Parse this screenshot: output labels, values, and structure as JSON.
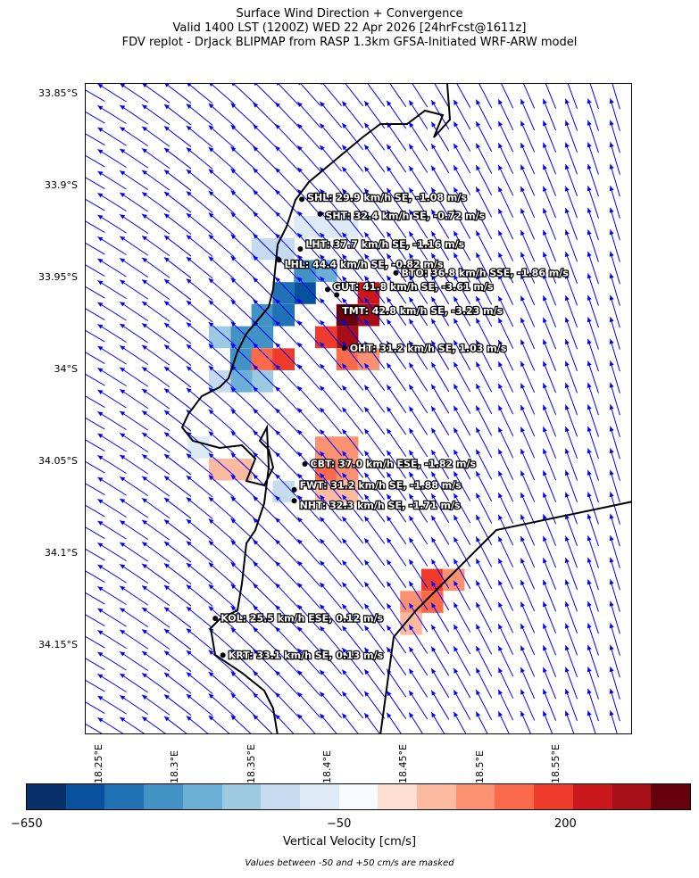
{
  "title": {
    "line1": "Surface Wind Direction + Convergence",
    "line2": "Valid 1400 LST (1200Z) WED 22 Apr 2026 [24hrFcst@1611z]",
    "line3": "FDV replot - DrJack BLIPMAP from RASP 1.3km GFSA-Initiated WRF-ARW model"
  },
  "axes": {
    "lat_ticks": [
      "33.85°S",
      "33.9°S",
      "33.95°S",
      "34°S",
      "34.05°S",
      "34.1°S",
      "34.15°S"
    ],
    "lon_ticks": [
      "18.25°E",
      "18.3°E",
      "18.35°E",
      "18.4°E",
      "18.45°E",
      "18.5°E",
      "18.55°E"
    ]
  },
  "stations": [
    {
      "label": "SHL: 29.9 km/h SE, -1.08 m/s",
      "lon": 18.383,
      "lat": -33.907
    },
    {
      "label": "SHT: 32.4 km/h SE, -0.72 m/s",
      "lon": 18.395,
      "lat": -33.915
    },
    {
      "label": "LHT: 37.7 km/h SE, -1.16 m/s",
      "lon": 18.382,
      "lat": -33.934
    },
    {
      "label": "LHL: 44.4 km/h SE, -0.82 m/s",
      "lon": 18.368,
      "lat": -33.94
    },
    {
      "label": "BTO: 36.8 km/h SSE, -1.86 m/s",
      "lon": 18.445,
      "lat": -33.947
    },
    {
      "label": "GUT: 41.8 km/h SE, -3.61 m/s",
      "lon": 18.4,
      "lat": -33.956
    },
    {
      "label": "TMT: 42.8 km/h SE, -3.23 m/s",
      "lon": 18.406,
      "lat": -33.959
    },
    {
      "label": "OHT: 31.2 km/h SE, 1.03 m/s",
      "lon": 18.411,
      "lat": -33.988
    },
    {
      "label": "CBT: 37.0 km/h ESE, -1.82 m/s",
      "lon": 18.385,
      "lat": -34.051
    },
    {
      "label": "FWT: 31.2 km/h SE, -1.88 m/s",
      "lon": 18.378,
      "lat": -34.065
    },
    {
      "label": "NHT: 32.3 km/h SE, -1.71 m/s",
      "lon": 18.378,
      "lat": -34.071
    },
    {
      "label": "KOL: 25.5 km/h ESE, 0.12 m/s",
      "lon": 18.326,
      "lat": -34.135
    },
    {
      "label": "KRT: 33.1 km/h SE, 0.13 m/s",
      "lon": 18.331,
      "lat": -34.155
    }
  ],
  "velocity_cells": [
    [
      18.385,
      -33.958,
      -400
    ],
    [
      18.371,
      -33.958,
      -350
    ],
    [
      18.357,
      -33.97,
      -300
    ],
    [
      18.371,
      -33.97,
      -350
    ],
    [
      18.343,
      -33.982,
      -300
    ],
    [
      18.357,
      -33.982,
      -250
    ],
    [
      18.343,
      -33.994,
      -250
    ],
    [
      18.329,
      -33.982,
      -150
    ],
    [
      18.399,
      -33.946,
      -200
    ],
    [
      18.385,
      -33.946,
      -250
    ],
    [
      18.371,
      -33.934,
      -100
    ],
    [
      18.357,
      -33.934,
      -80
    ],
    [
      18.413,
      -33.97,
      600
    ],
    [
      18.427,
      -33.97,
      400
    ],
    [
      18.427,
      -33.958,
      300
    ],
    [
      18.413,
      -33.982,
      400
    ],
    [
      18.399,
      -33.982,
      250
    ],
    [
      18.413,
      -33.994,
      200
    ],
    [
      18.427,
      -33.994,
      150
    ],
    [
      18.357,
      -33.994,
      200
    ],
    [
      18.371,
      -33.994,
      250
    ],
    [
      18.399,
      -34.042,
      150
    ],
    [
      18.413,
      -34.042,
      120
    ],
    [
      18.399,
      -34.054,
      200
    ],
    [
      18.413,
      -34.054,
      150
    ],
    [
      18.399,
      -34.066,
      100
    ],
    [
      18.413,
      -34.066,
      80
    ],
    [
      18.343,
      -34.054,
      100
    ],
    [
      18.329,
      -34.054,
      80
    ],
    [
      18.469,
      -34.114,
      250
    ],
    [
      18.483,
      -34.114,
      120
    ],
    [
      18.455,
      -34.126,
      150
    ],
    [
      18.469,
      -34.126,
      200
    ],
    [
      18.455,
      -34.138,
      60
    ],
    [
      18.385,
      -33.922,
      -60
    ],
    [
      18.399,
      -33.922,
      -60
    ],
    [
      18.413,
      -33.922,
      -60
    ],
    [
      18.357,
      -34.006,
      -150
    ],
    [
      18.343,
      -34.006,
      -200
    ],
    [
      18.329,
      -34.006,
      -100
    ],
    [
      18.315,
      -34.042,
      -60
    ],
    [
      18.371,
      -34.066,
      -80
    ]
  ],
  "colorbar": {
    "label": "Vertical Velocity [cm/s]",
    "ticks": [
      "−650",
      "−50",
      "200"
    ],
    "colors": [
      "#08306b",
      "#08519c",
      "#2171b5",
      "#4292c6",
      "#6baed6",
      "#9ecae1",
      "#c6dbef",
      "#deebf7",
      "#f7fbff",
      "#fee0d2",
      "#fcbba1",
      "#fc9272",
      "#fb6a4a",
      "#ef3b2c",
      "#cb181d",
      "#a50f15",
      "#67000d"
    ],
    "note": "Values between -50 and +50 cm/s are masked"
  },
  "wind_arrow_color": "#0000ff"
}
